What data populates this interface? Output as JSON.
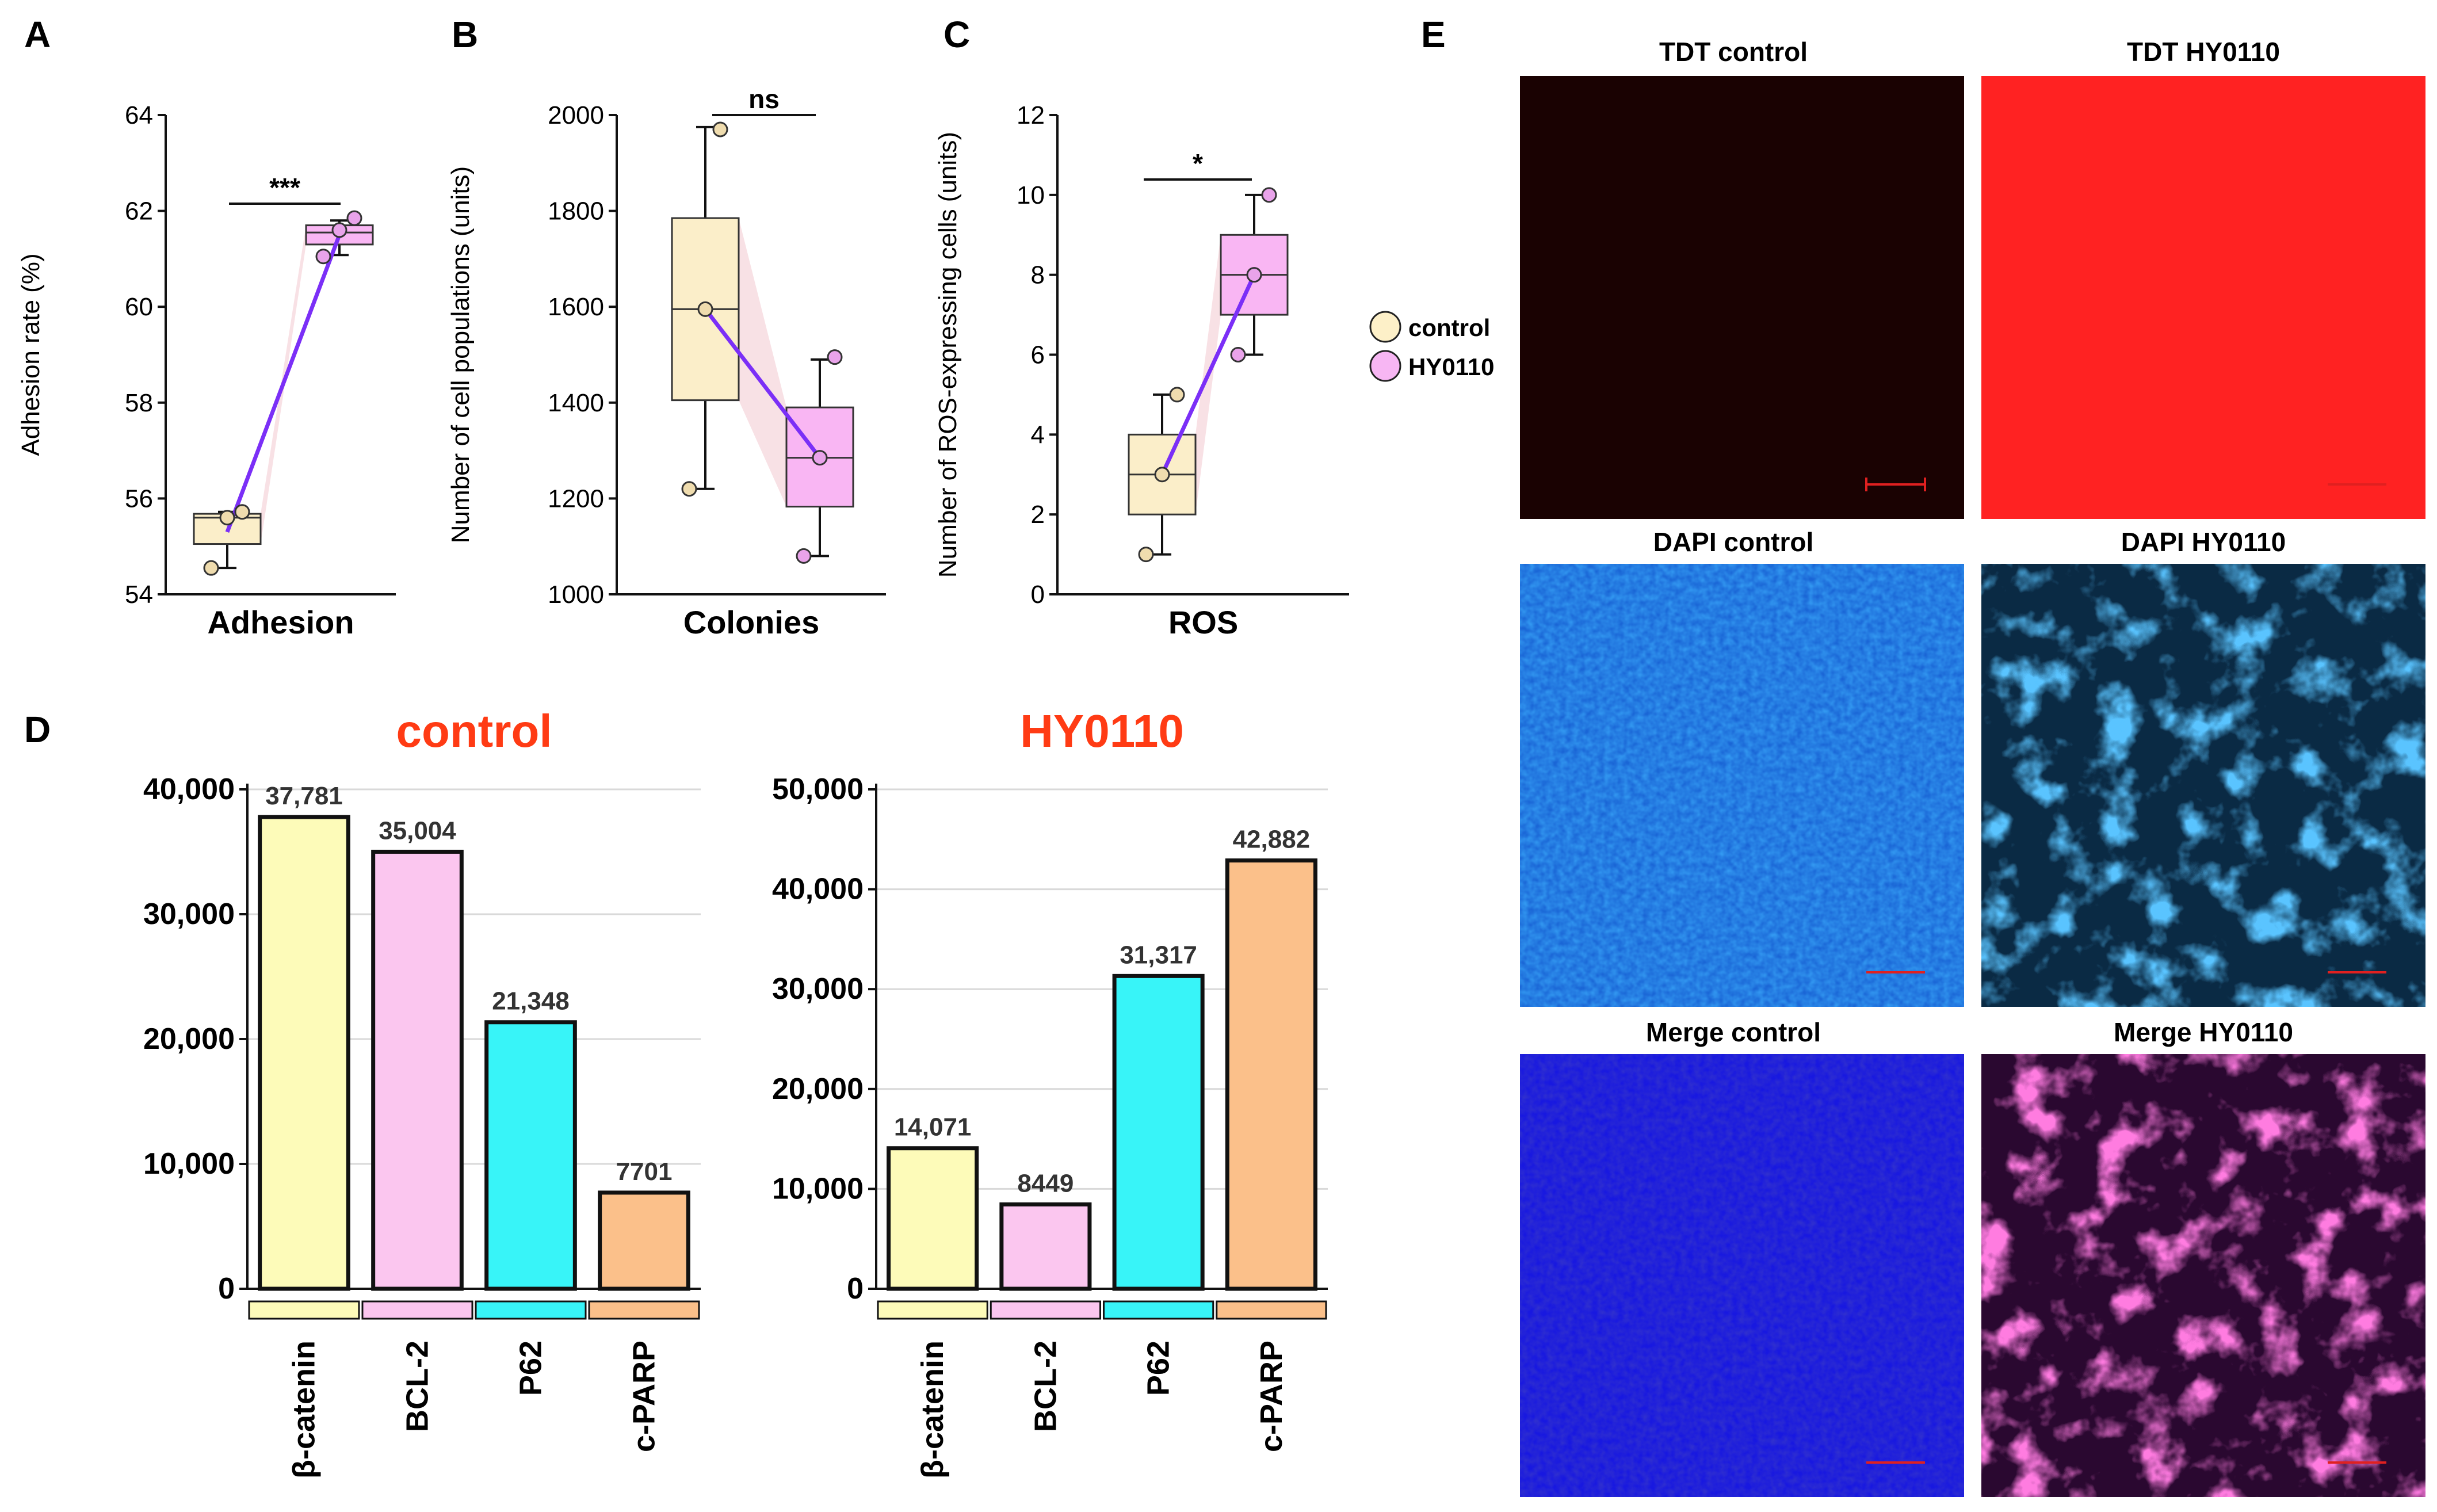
{
  "figure": {
    "panel_letters": [
      "A",
      "B",
      "C",
      "D",
      "E"
    ]
  },
  "legend": {
    "items": [
      {
        "label": "control",
        "color": "#fdf0c8"
      },
      {
        "label": "HY0110",
        "color": "#f7b6f3"
      }
    ]
  },
  "colors": {
    "control_box": "#fbeec9",
    "hy_box": "#f9b6f3",
    "trend_line": "#7b2ff7",
    "ribbon": "#f2c8d0",
    "red_title": "#ff3b14",
    "grid": "#d9d9d9"
  },
  "chart_data": [
    {
      "id": "A",
      "type": "box",
      "ylabel": "Adhesion rate (%)",
      "xlabel": "Adhesion",
      "ylim": [
        54,
        64
      ],
      "yticks": [
        54,
        56,
        58,
        60,
        62,
        64
      ],
      "yticklabels": [
        "54",
        "56",
        "58",
        "60",
        "62",
        "64"
      ],
      "significance": "***",
      "groups": [
        {
          "name": "control",
          "q1": 55.05,
          "median": 55.6,
          "q3": 55.68,
          "whisker_low": 54.55,
          "whisker_high": 55.72,
          "mean": 55.3,
          "points": [
            54.55,
            55.6,
            55.72
          ]
        },
        {
          "name": "HY0110",
          "q1": 61.3,
          "median": 61.55,
          "q3": 61.7,
          "whisker_low": 61.08,
          "whisker_high": 61.8,
          "mean": 61.5,
          "points": [
            61.05,
            61.6,
            61.85
          ]
        }
      ]
    },
    {
      "id": "B",
      "type": "box",
      "ylabel": "Number of cell populations (units)",
      "xlabel": "Colonies",
      "ylim": [
        1000,
        2000
      ],
      "yticks": [
        1000,
        1200,
        1400,
        1600,
        1800,
        2000
      ],
      "yticklabels": [
        "1000",
        "1200",
        "1400",
        "1600",
        "1800",
        "2000"
      ],
      "significance": "ns",
      "groups": [
        {
          "name": "control",
          "q1": 1405,
          "median": 1595,
          "q3": 1785,
          "whisker_low": 1220,
          "whisker_high": 1975,
          "mean": 1595,
          "points": [
            1220,
            1595,
            1970
          ]
        },
        {
          "name": "HY0110",
          "q1": 1183,
          "median": 1285,
          "q3": 1390,
          "whisker_low": 1080,
          "whisker_high": 1490,
          "mean": 1285,
          "points": [
            1080,
            1285,
            1495
          ]
        }
      ]
    },
    {
      "id": "C",
      "type": "box",
      "ylabel": "Number of ROS-expressing cells (units)",
      "xlabel": "ROS",
      "ylim": [
        0,
        12
      ],
      "yticks": [
        0,
        2,
        4,
        6,
        8,
        10,
        12
      ],
      "yticklabels": [
        "0",
        "2",
        "4",
        "6",
        "8",
        "10",
        "12"
      ],
      "significance": "*",
      "groups": [
        {
          "name": "control",
          "q1": 2,
          "median": 3,
          "q3": 4,
          "whisker_low": 1,
          "whisker_high": 5,
          "mean": 3,
          "points": [
            1,
            3,
            5
          ]
        },
        {
          "name": "HY0110",
          "q1": 7,
          "median": 8,
          "q3": 9,
          "whisker_low": 6,
          "whisker_high": 10,
          "mean": 8,
          "points": [
            6,
            8,
            10
          ]
        }
      ]
    },
    {
      "id": "D-control",
      "type": "bar",
      "title": "control",
      "categories": [
        "β-catenin",
        "BCL-2",
        "P62",
        "c-PARP"
      ],
      "values": [
        37781,
        35004,
        21348,
        7701
      ],
      "value_labels": [
        "37,781",
        "35,004",
        "21,348",
        "7701"
      ],
      "colors": [
        "#fdfbb9",
        "#fbc6ef",
        "#38f4f8",
        "#fbc08a"
      ],
      "ylim": [
        0,
        40000
      ],
      "yticks": [
        0,
        10000,
        20000,
        30000,
        40000
      ],
      "yticklabels": [
        "0",
        "10,000",
        "20,000",
        "30,000",
        "40,000"
      ]
    },
    {
      "id": "D-HY0110",
      "type": "bar",
      "title": "HY0110",
      "categories": [
        "β-catenin",
        "BCL-2",
        "P62",
        "c-PARP"
      ],
      "values": [
        14071,
        8449,
        31317,
        42882
      ],
      "value_labels": [
        "14,071",
        "8449",
        "31,317",
        "42,882"
      ],
      "colors": [
        "#fdfbb9",
        "#fbc6ef",
        "#38f4f8",
        "#fbc08a"
      ],
      "ylim": [
        0,
        50000
      ],
      "yticks": [
        0,
        10000,
        20000,
        30000,
        40000,
        50000
      ],
      "yticklabels": [
        "0",
        "10,000",
        "20,000",
        "30,000",
        "40,000",
        "50,000"
      ]
    }
  ],
  "micrographs": {
    "titles": [
      "TDT control",
      "TDT HY0110",
      "DAPI control",
      "DAPI HY0110",
      "Merge control",
      "Merge HY0110"
    ]
  }
}
